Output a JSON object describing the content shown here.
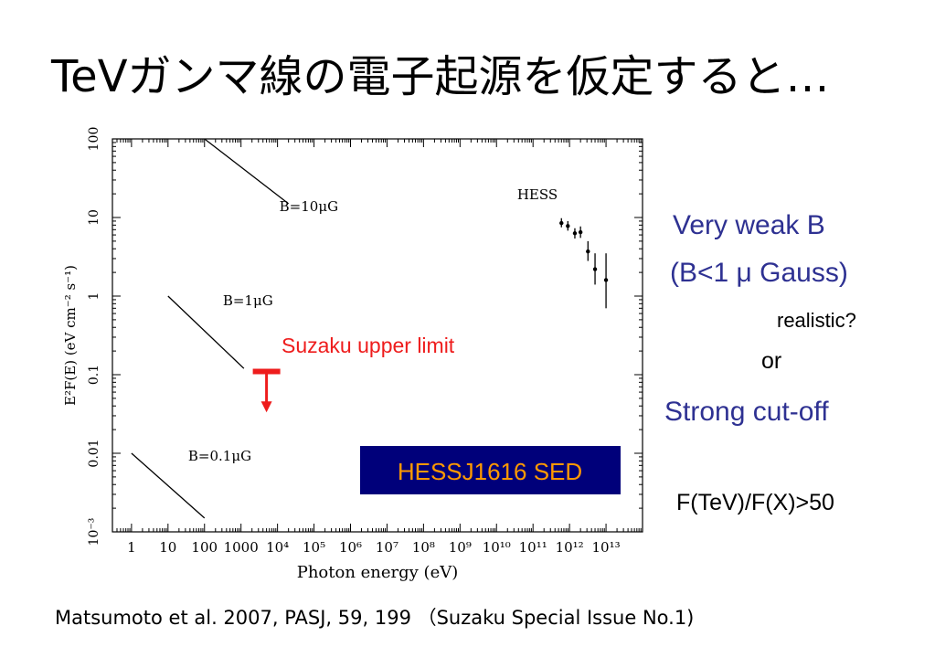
{
  "slide": {
    "title": "TeVガンマ線の電子起源を仮定すると…",
    "citation": "Matsumoto et al. 2007, PASJ, 59, 199 （Suzaku Special Issue No.1)"
  },
  "side_notes": {
    "very_weak_b": "Very weak B",
    "b_condition": "(B<1 μ Gauss)",
    "realistic": "realistic?",
    "or": "or",
    "strong_cutoff": "Strong cut-off",
    "flux_ratio": "F(TeV)/F(X)>50"
  },
  "colors": {
    "side_blue": "#2e3192",
    "suzaku_red": "#ee1c1c",
    "hess_box_bg": "#00007a",
    "hess_box_text": "#ff9900"
  },
  "chart_data": {
    "type": "scatter",
    "xlabel": "Photon energy (eV)",
    "ylabel": "E²F(E) (eV cm⁻² s⁻¹)",
    "x_scale": "log",
    "y_scale": "log",
    "xlim": [
      0.3,
      100000000000000
    ],
    "ylim": [
      0.001,
      100
    ],
    "x_tick_labels": [
      {
        "value": 1,
        "label": "1"
      },
      {
        "value": 10,
        "label": "10"
      },
      {
        "value": 100,
        "label": "100"
      },
      {
        "value": 1000,
        "label": "1000"
      },
      {
        "value": 10000,
        "label": "10⁴"
      },
      {
        "value": 100000,
        "label": "10⁵"
      },
      {
        "value": 1000000,
        "label": "10⁶"
      },
      {
        "value": 10000000,
        "label": "10⁷"
      },
      {
        "value": 100000000,
        "label": "10⁸"
      },
      {
        "value": 1000000000,
        "label": "10⁹"
      },
      {
        "value": 10000000000,
        "label": "10¹⁰"
      },
      {
        "value": 100000000000,
        "label": "10¹¹"
      },
      {
        "value": 1000000000000,
        "label": "10¹²"
      },
      {
        "value": 10000000000000,
        "label": "10¹³"
      }
    ],
    "y_tick_labels": [
      {
        "value": 0.001,
        "label": "10⁻³"
      },
      {
        "value": 0.01,
        "label": "0.01"
      },
      {
        "value": 0.1,
        "label": "0.1"
      },
      {
        "value": 1,
        "label": "1"
      },
      {
        "value": 10,
        "label": "10"
      },
      {
        "value": 100,
        "label": "100"
      }
    ],
    "lines": [
      {
        "name": "B=10μG",
        "x": [
          100,
          20000
        ],
        "y": [
          100,
          15
        ]
      },
      {
        "name": "B=1μG",
        "x": [
          10,
          1200
        ],
        "y": [
          1,
          0.12
        ]
      },
      {
        "name": "B=0.1μG",
        "x": [
          1,
          100
        ],
        "y": [
          0.01,
          0.0015
        ]
      }
    ],
    "series": [
      {
        "name": "HESS",
        "points": [
          {
            "x": 600000000000,
            "y": 8.5,
            "ylo": 7.5,
            "yhi": 9.8
          },
          {
            "x": 900000000000,
            "y": 7.8,
            "ylo": 6.8,
            "yhi": 9.0
          },
          {
            "x": 1400000000000,
            "y": 6.3,
            "ylo": 5.4,
            "yhi": 7.3
          },
          {
            "x": 2000000000000,
            "y": 6.5,
            "ylo": 5.5,
            "yhi": 7.7
          },
          {
            "x": 3200000000000,
            "y": 3.7,
            "ylo": 2.8,
            "yhi": 5.0
          },
          {
            "x": 5000000000000,
            "y": 2.2,
            "ylo": 1.4,
            "yhi": 3.5
          },
          {
            "x": 10000000000000,
            "y": 1.6,
            "ylo": 0.7,
            "yhi": 3.5
          }
        ]
      }
    ],
    "upper_limit": {
      "name": "Suzaku upper limit",
      "x": 5000,
      "y": 0.11,
      "arrow_to": 0.035
    },
    "annotation": "HESSJ1616 SED"
  }
}
